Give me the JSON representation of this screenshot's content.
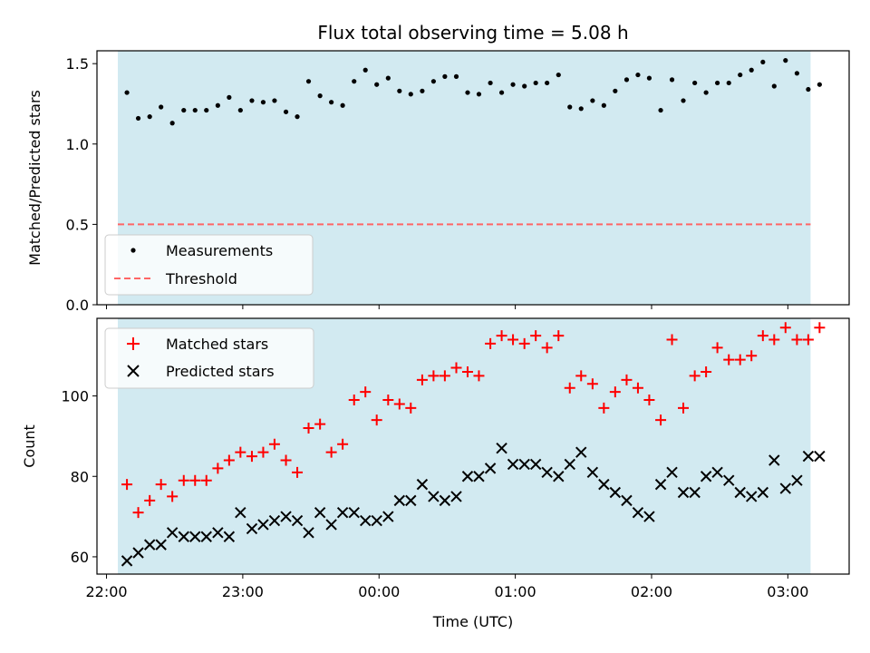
{
  "chart_data": {
    "type": "scatter",
    "title": "Flux total observing time = 5.08 h",
    "xlabel": "Time (UTC)",
    "x_ticks": [
      "22:00",
      "23:00",
      "00:00",
      "01:00",
      "02:00",
      "03:00"
    ],
    "x_range_hours": [
      -0.07,
      5.45
    ],
    "observing_window_hours": [
      0.083,
      5.167
    ],
    "shade_color": "#add8e6",
    "panels": [
      {
        "ylabel": "Matched/Predicted stars",
        "ylim": [
          0.0,
          1.58
        ],
        "y_ticks": [
          "0.0",
          "0.5",
          "1.0",
          "1.5"
        ],
        "y_tick_values": [
          0.0,
          0.5,
          1.0,
          1.5
        ],
        "legend_placement": "lower-left",
        "threshold": {
          "name": "Threshold",
          "value": 0.5,
          "color": "#ff6666",
          "style": "dashed"
        },
        "series": [
          {
            "name": "Measurements",
            "marker": "dot",
            "color": "#000000",
            "x": [
              0.15,
              0.233,
              0.317,
              0.4,
              0.483,
              0.567,
              0.65,
              0.733,
              0.817,
              0.9,
              0.983,
              1.067,
              1.15,
              1.233,
              1.317,
              1.4,
              1.483,
              1.567,
              1.65,
              1.733,
              1.817,
              1.9,
              1.983,
              2.067,
              2.15,
              2.233,
              2.317,
              2.4,
              2.483,
              2.567,
              2.65,
              2.733,
              2.817,
              2.9,
              2.983,
              3.067,
              3.15,
              3.233,
              3.317,
              3.4,
              3.483,
              3.567,
              3.65,
              3.733,
              3.817,
              3.9,
              3.983,
              4.067,
              4.15,
              4.233,
              4.317,
              4.4,
              4.483,
              4.567,
              4.65,
              4.733,
              4.817,
              4.9,
              4.983,
              5.067,
              5.15,
              5.233
            ],
            "y": [
              1.32,
              1.16,
              1.17,
              1.23,
              1.13,
              1.21,
              1.21,
              1.21,
              1.24,
              1.29,
              1.21,
              1.27,
              1.26,
              1.27,
              1.2,
              1.17,
              1.39,
              1.3,
              1.26,
              1.24,
              1.39,
              1.46,
              1.37,
              1.41,
              1.33,
              1.31,
              1.33,
              1.39,
              1.42,
              1.42,
              1.32,
              1.31,
              1.38,
              1.32,
              1.37,
              1.36,
              1.38,
              1.38,
              1.43,
              1.23,
              1.22,
              1.27,
              1.24,
              1.33,
              1.4,
              1.43,
              1.41,
              1.21,
              1.4,
              1.27,
              1.38,
              1.32,
              1.38,
              1.38,
              1.43,
              1.46,
              1.51,
              1.36,
              1.52,
              1.44,
              1.34,
              1.37
            ]
          }
        ]
      },
      {
        "ylabel": "Count",
        "ylim": [
          55.7,
          119.3
        ],
        "y_ticks": [
          "60",
          "80",
          "100"
        ],
        "y_tick_values": [
          60,
          80,
          100
        ],
        "legend_placement": "upper-left",
        "series": [
          {
            "name": "Matched stars",
            "marker": "plus",
            "color": "#ff0000",
            "x": [
              0.15,
              0.233,
              0.317,
              0.4,
              0.483,
              0.567,
              0.65,
              0.733,
              0.817,
              0.9,
              0.983,
              1.067,
              1.15,
              1.233,
              1.317,
              1.4,
              1.483,
              1.567,
              1.65,
              1.733,
              1.817,
              1.9,
              1.983,
              2.067,
              2.15,
              2.233,
              2.317,
              2.4,
              2.483,
              2.567,
              2.65,
              2.733,
              2.817,
              2.9,
              2.983,
              3.067,
              3.15,
              3.233,
              3.317,
              3.4,
              3.483,
              3.567,
              3.65,
              3.733,
              3.817,
              3.9,
              3.983,
              4.067,
              4.15,
              4.233,
              4.317,
              4.4,
              4.483,
              4.567,
              4.65,
              4.733,
              4.817,
              4.9,
              4.983,
              5.067,
              5.15,
              5.233
            ],
            "y": [
              78,
              71,
              74,
              78,
              75,
              79,
              79,
              79,
              82,
              84,
              86,
              85,
              86,
              88,
              84,
              81,
              92,
              93,
              86,
              88,
              99,
              101,
              94,
              99,
              98,
              97,
              104,
              105,
              105,
              107,
              106,
              105,
              113,
              115,
              114,
              113,
              115,
              112,
              115,
              102,
              105,
              103,
              97,
              101,
              104,
              102,
              99,
              94,
              114,
              97,
              105,
              106,
              112,
              109,
              109,
              110,
              115,
              114,
              117,
              114,
              114,
              117
            ]
          },
          {
            "name": "Predicted stars",
            "marker": "x",
            "color": "#000000",
            "x": [
              0.15,
              0.233,
              0.317,
              0.4,
              0.483,
              0.567,
              0.65,
              0.733,
              0.817,
              0.9,
              0.983,
              1.067,
              1.15,
              1.233,
              1.317,
              1.4,
              1.483,
              1.567,
              1.65,
              1.733,
              1.817,
              1.9,
              1.983,
              2.067,
              2.15,
              2.233,
              2.317,
              2.4,
              2.483,
              2.567,
              2.65,
              2.733,
              2.817,
              2.9,
              2.983,
              3.067,
              3.15,
              3.233,
              3.317,
              3.4,
              3.483,
              3.567,
              3.65,
              3.733,
              3.817,
              3.9,
              3.983,
              4.067,
              4.15,
              4.233,
              4.317,
              4.4,
              4.483,
              4.567,
              4.65,
              4.733,
              4.817,
              4.9,
              4.983,
              5.067,
              5.15,
              5.233
            ],
            "y": [
              59,
              61,
              63,
              63,
              66,
              65,
              65,
              65,
              66,
              65,
              71,
              67,
              68,
              69,
              70,
              69,
              66,
              71,
              68,
              71,
              71,
              69,
              69,
              70,
              74,
              74,
              78,
              75,
              74,
              75,
              80,
              80,
              82,
              87,
              83,
              83,
              83,
              81,
              80,
              83,
              86,
              81,
              78,
              76,
              74,
              71,
              70,
              78,
              81,
              76,
              76,
              80,
              81,
              79,
              76,
              75,
              76,
              84,
              77,
              79,
              85,
              85
            ]
          }
        ]
      }
    ]
  }
}
